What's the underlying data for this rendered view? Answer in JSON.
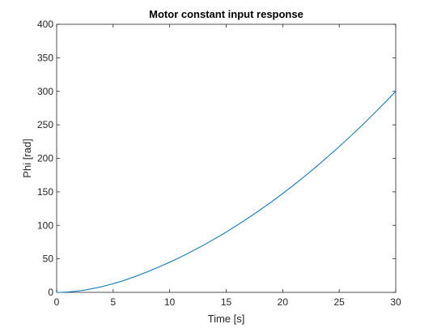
{
  "chart_data": {
    "type": "line",
    "title": "Motor constant input response",
    "xlabel": "Time [s]",
    "ylabel": "Phi [rad]",
    "xlim": [
      0,
      30
    ],
    "ylim": [
      0,
      400
    ],
    "xticks": [
      0,
      5,
      10,
      15,
      20,
      25,
      30
    ],
    "yticks": [
      0,
      50,
      100,
      150,
      200,
      250,
      300,
      350,
      400
    ],
    "xtick_labels": [
      "0",
      "5",
      "10",
      "15",
      "20",
      "25",
      "30"
    ],
    "ytick_labels": [
      "0",
      "50",
      "100",
      "150",
      "200",
      "250",
      "300",
      "350",
      "400"
    ],
    "grid": false,
    "series": [
      {
        "color": "#0072BD",
        "x": [
          0,
          0.5,
          1,
          1.5,
          2,
          2.5,
          3,
          4,
          5,
          6,
          7,
          8,
          9,
          10,
          11,
          12,
          13,
          14,
          15,
          16,
          17,
          18,
          19,
          20,
          21,
          22,
          23,
          24,
          25,
          26,
          27,
          28,
          29,
          30
        ],
        "y": [
          0,
          0.2,
          0.6,
          1.4,
          2.3,
          3.5,
          5,
          8.5,
          13,
          18,
          24,
          30.5,
          37.5,
          45,
          53,
          61.5,
          70.5,
          80,
          90,
          100.5,
          111.5,
          123,
          135,
          147.5,
          160.5,
          174,
          188,
          202.5,
          217.5,
          233,
          249,
          265.5,
          282.5,
          300
        ]
      }
    ],
    "colors": {
      "axis": "#262626",
      "line": "#0072BD",
      "background": "#ffffff"
    }
  }
}
